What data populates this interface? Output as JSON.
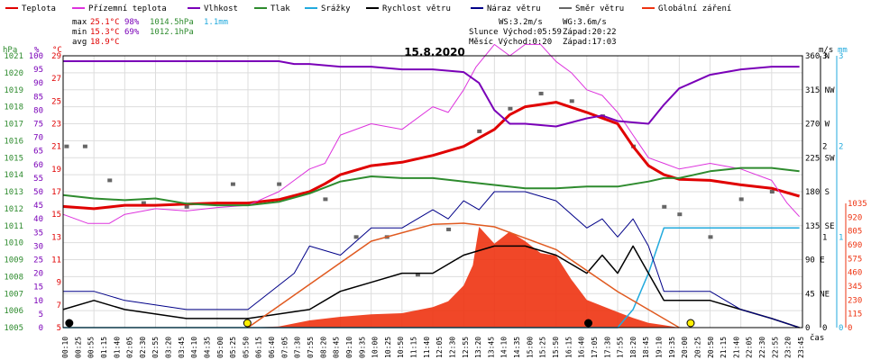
{
  "legend": [
    {
      "label": "Teplota",
      "color": "#e00000"
    },
    {
      "label": "Přízemní teplota",
      "color": "#dd33dd"
    },
    {
      "label": "Vlhkost",
      "color": "#7a00b8"
    },
    {
      "label": "Tlak",
      "color": "#2e8b2e"
    },
    {
      "label": "Srážky",
      "color": "#22aadd"
    },
    {
      "label": "Rychlost větru",
      "color": "#000000"
    },
    {
      "label": "Náraz větru",
      "color": "#000088"
    },
    {
      "label": "Směr větru",
      "color": "#666666"
    },
    {
      "label": "Globální záření",
      "color": "#ee3311"
    }
  ],
  "stats": {
    "max_label": "max",
    "max_temp": "25.1°C",
    "max_hum": "98%",
    "max_press": "1014.5hPa",
    "max_rain": "1.1mm",
    "min_label": "min",
    "min_temp": "15.3°C",
    "min_hum": "69%",
    "min_press": "1012.1hPa",
    "avg_label": "avg",
    "avg_temp": "18.9°C",
    "ws": "WS:3.2m/s",
    "wg": "WG:3.6m/s",
    "sun": "Slunce Východ:05:59",
    "sun_set": "Západ:20:22",
    "moon": "Měsíc Východ:0:20",
    "moon_set": "Západ:17:03"
  },
  "date": "15.8.2020",
  "axis_units": {
    "hpa": "hPa",
    "pct": "%",
    "degc": "°C",
    "ms": "m/s",
    "mm": "mm",
    "cas": "čas"
  },
  "chart_data": {
    "type": "line",
    "title": "15.8.2020",
    "x_tick_labels": [
      "00:10",
      "00:25",
      "00:55",
      "01:15",
      "01:40",
      "02:05",
      "02:30",
      "02:55",
      "03:20",
      "03:45",
      "04:10",
      "04:35",
      "05:00",
      "05:25",
      "05:50",
      "06:15",
      "06:40",
      "07:05",
      "07:30",
      "07:55",
      "08:20",
      "08:45",
      "09:10",
      "09:35",
      "10:00",
      "10:25",
      "10:50",
      "11:15",
      "11:40",
      "12:05",
      "12:30",
      "12:55",
      "13:20",
      "13:45",
      "14:10",
      "14:35",
      "15:00",
      "15:25",
      "15:50",
      "16:15",
      "16:40",
      "17:05",
      "17:30",
      "17:55",
      "18:20",
      "18:45",
      "19:10",
      "19:35",
      "20:00",
      "20:25",
      "20:50",
      "21:15",
      "21:40",
      "22:05",
      "22:30",
      "22:55",
      "23:20",
      "23:45"
    ],
    "left_axes": {
      "pressure_hpa": [
        "1005",
        "1006",
        "1007",
        "1008",
        "1009",
        "1010",
        "1011",
        "1012",
        "1013",
        "1014",
        "1015",
        "1016",
        "1017",
        "1018",
        "1019",
        "1020",
        "1021"
      ],
      "humidity_pct": [
        "0",
        "5",
        "10",
        "15",
        "20",
        "25",
        "30",
        "35",
        "40",
        "45",
        "50",
        "55",
        "60",
        "65",
        "70",
        "75",
        "80",
        "85",
        "90",
        "95",
        "100"
      ],
      "temp_c": [
        "5",
        "7",
        "9",
        "11",
        "13",
        "15",
        "17",
        "19",
        "21",
        "23",
        "25",
        "27",
        "29"
      ]
    },
    "right_axes": {
      "wind_dir": [
        "0",
        "45 NE",
        "90 E",
        "135 SE",
        "180 S",
        "225 SW",
        "270 W",
        "315 NW",
        "360 N"
      ],
      "wind_ms": [
        "0",
        "1",
        "2",
        "3"
      ],
      "rain_mm": [
        "0",
        "1",
        "2",
        "3"
      ],
      "radiation": [
        "0",
        "115",
        "230",
        "345",
        "460",
        "575",
        "690",
        "805",
        "920",
        "1035"
      ]
    },
    "series": [
      {
        "name": "Teplota",
        "unit": "°C",
        "x_hours": [
          0,
          1,
          2,
          3,
          4,
          5,
          6,
          7,
          8,
          8.5,
          9,
          10,
          11,
          12,
          13,
          14,
          14.5,
          15,
          16,
          17,
          17.5,
          18,
          18.5,
          19,
          19.5,
          20,
          21,
          22,
          23,
          23.9
        ],
        "values": [
          15.7,
          15.5,
          15.8,
          15.8,
          15.9,
          16,
          16,
          16.3,
          17,
          17.7,
          18.5,
          19.3,
          19.6,
          20.2,
          21,
          22.5,
          23.8,
          24.5,
          24.9,
          24,
          23.5,
          23,
          21,
          19.3,
          18.5,
          18.1,
          18,
          17.6,
          17.3,
          16.6
        ]
      },
      {
        "name": "Přízemní teplota",
        "unit": "°C",
        "x_hours": [
          0,
          0.8,
          1.5,
          2,
          3,
          4,
          5,
          6,
          7,
          7.5,
          8,
          8.5,
          9,
          10,
          11,
          12,
          12.5,
          13,
          13.4,
          14,
          14.5,
          15,
          15.5,
          16,
          16.5,
          17,
          17.5,
          18,
          18.5,
          19,
          19.5,
          20,
          21,
          22,
          23,
          23.5,
          23.9
        ],
        "values": [
          15,
          14.2,
          14.2,
          15,
          15.5,
          15.3,
          15.6,
          15.8,
          17,
          18,
          19,
          19.5,
          22,
          23,
          22.5,
          24.5,
          24,
          26,
          28,
          30,
          29,
          30,
          30,
          28.5,
          27.5,
          26,
          25.5,
          24,
          22,
          20,
          19.5,
          19,
          19.5,
          19,
          18,
          16,
          14.8
        ]
      },
      {
        "name": "Vlhkost",
        "unit": "%",
        "x_hours": [
          0,
          1,
          2,
          3,
          4,
          5,
          6,
          7,
          7.5,
          8,
          9,
          10,
          11,
          12,
          13,
          13.5,
          14,
          14.5,
          15,
          16,
          17,
          17.5,
          18,
          19,
          19.5,
          20,
          21,
          22,
          23,
          23.9
        ],
        "values": [
          98,
          98,
          98,
          98,
          98,
          98,
          98,
          98,
          97,
          97,
          96,
          96,
          95,
          95,
          94,
          90,
          80,
          75,
          75,
          74,
          77,
          78,
          76,
          75,
          82,
          88,
          93,
          95,
          96,
          96
        ]
      },
      {
        "name": "Tlak",
        "unit": "hPa",
        "x_hours": [
          0,
          1,
          2,
          3,
          4,
          5,
          6,
          7,
          8,
          9,
          10,
          11,
          12,
          13,
          14,
          15,
          16,
          17,
          18,
          19,
          19.5,
          20,
          21,
          22,
          23,
          23.9
        ],
        "values": [
          1012.8,
          1012.6,
          1012.5,
          1012.6,
          1012.3,
          1012.2,
          1012.2,
          1012.4,
          1012.9,
          1013.6,
          1013.9,
          1013.8,
          1013.8,
          1013.6,
          1013.4,
          1013.2,
          1013.2,
          1013.3,
          1013.3,
          1013.6,
          1013.8,
          1013.8,
          1014.2,
          1014.4,
          1014.4,
          1014.2
        ]
      },
      {
        "name": "Srážky",
        "unit": "mm",
        "x_hours": [
          0,
          18,
          18.5,
          19,
          19.5,
          23.9
        ],
        "values": [
          0,
          0,
          0.2,
          0.6,
          1.1,
          1.1
        ]
      },
      {
        "name": "Rychlost větru",
        "unit": "m/s",
        "x_hours": [
          0,
          1,
          2,
          4,
          6,
          8,
          9,
          10,
          11,
          12,
          12.5,
          13,
          14,
          15,
          16,
          17,
          17.5,
          18,
          18.5,
          19,
          19.5,
          20,
          21,
          22,
          23,
          23.9
        ],
        "values": [
          0.2,
          0.3,
          0.2,
          0.1,
          0.1,
          0.2,
          0.4,
          0.5,
          0.6,
          0.6,
          0.7,
          0.8,
          0.9,
          0.9,
          0.8,
          0.6,
          0.8,
          0.6,
          0.9,
          0.6,
          0.3,
          0.3,
          0.3,
          0.2,
          0.1,
          0
        ]
      },
      {
        "name": "Náraz větru",
        "unit": "m/s",
        "x_hours": [
          0,
          1,
          2,
          4,
          6,
          7.5,
          8,
          9,
          10,
          11,
          12,
          12.5,
          13,
          13.5,
          14,
          15,
          16,
          17,
          17.5,
          18,
          18.5,
          19,
          19.5,
          20,
          21,
          22,
          23,
          23.9
        ],
        "values": [
          0.4,
          0.4,
          0.3,
          0.2,
          0.2,
          0.6,
          0.9,
          0.8,
          1.1,
          1.1,
          1.3,
          1.2,
          1.4,
          1.3,
          1.5,
          1.5,
          1.4,
          1.1,
          1.2,
          1.0,
          1.2,
          0.9,
          0.4,
          0.4,
          0.4,
          0.2,
          0.1,
          0
        ]
      },
      {
        "name": "Směr větru",
        "unit": "°",
        "x_hours": [
          0.1,
          0.7,
          1.5,
          2.6,
          4,
          5.5,
          7,
          8.5,
          9.5,
          10.5,
          11.5,
          12.5,
          13.5,
          14.5,
          15.5,
          16.5,
          17.5,
          18.5,
          19.5,
          20,
          21,
          22,
          23
        ],
        "values": [
          240,
          240,
          195,
          165,
          160,
          190,
          190,
          170,
          120,
          120,
          70,
          130,
          260,
          290,
          310,
          300,
          280,
          240,
          160,
          150,
          120,
          170,
          180
        ]
      },
      {
        "name": "Globální záření",
        "unit": "W/m²",
        "x_hours": [
          6,
          7,
          8,
          9,
          10,
          11,
          12,
          12.5,
          13,
          13.3,
          13.5,
          14,
          14.5,
          15,
          15.5,
          16,
          16.5,
          17,
          17.5,
          18,
          18.5,
          19,
          19.5,
          20
        ],
        "values": [
          0,
          10,
          60,
          90,
          110,
          120,
          170,
          220,
          350,
          520,
          840,
          700,
          800,
          720,
          620,
          600,
          400,
          230,
          180,
          130,
          80,
          40,
          20,
          0
        ]
      },
      {
        "name": "Globální záření (teoretické)",
        "unit": "W/m²",
        "x_hours": [
          6,
          8,
          10,
          12,
          13,
          14,
          16,
          18,
          20
        ],
        "values": [
          0,
          360,
          720,
          860,
          870,
          840,
          650,
          300,
          0
        ]
      }
    ]
  }
}
